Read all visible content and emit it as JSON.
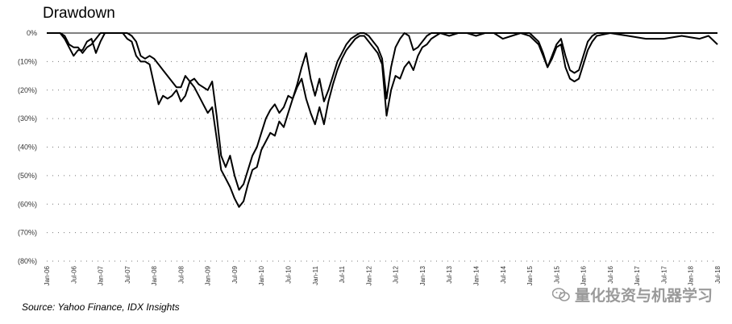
{
  "chart_data": {
    "type": "line",
    "title": "Drawdown",
    "ylabel": "",
    "xlabel": "",
    "ylim": [
      -80,
      0
    ],
    "y_ticks": [
      "0%",
      "(10%)",
      "(20%)",
      "(30%)",
      "(40%)",
      "(50%)",
      "(60%)",
      "(70%)",
      "(80%)"
    ],
    "x_ticks": [
      "Jan-06",
      "Jul-06",
      "Jan-07",
      "Jul-07",
      "Jan-08",
      "Jul-08",
      "Jan-09",
      "Jul-09",
      "Jan-10",
      "Jul-10",
      "Jan-11",
      "Jul-11",
      "Jan-12",
      "Jul-12",
      "Jan-13",
      "Jul-13",
      "Jan-14",
      "Jul-14",
      "Jan-15",
      "Jul-15",
      "Jan-16",
      "Jul-16",
      "Jan-17",
      "Jul-17",
      "Jan-18",
      "Jul-18"
    ],
    "grid": "horizontal dotted",
    "series": [
      {
        "points": [
          [
            0,
            0
          ],
          [
            3,
            0
          ],
          [
            4,
            -1
          ],
          [
            5,
            -4
          ],
          [
            6,
            -5
          ],
          [
            7,
            -5
          ],
          [
            8,
            -7
          ],
          [
            9,
            -5
          ],
          [
            10,
            -4
          ],
          [
            11,
            -2
          ],
          [
            12,
            0
          ],
          [
            14,
            0
          ],
          [
            16,
            0
          ],
          [
            18,
            0
          ],
          [
            19,
            -1
          ],
          [
            20,
            -3
          ],
          [
            21,
            -8
          ],
          [
            22,
            -9
          ],
          [
            23,
            -8
          ],
          [
            24,
            -9
          ],
          [
            25,
            -11
          ],
          [
            26,
            -13
          ],
          [
            27,
            -15
          ],
          [
            28,
            -17
          ],
          [
            29,
            -19
          ],
          [
            30,
            -19
          ],
          [
            31,
            -15
          ],
          [
            32,
            -17
          ],
          [
            33,
            -16
          ],
          [
            34,
            -18
          ],
          [
            35,
            -19
          ],
          [
            36,
            -20
          ],
          [
            37,
            -17
          ],
          [
            38,
            -29
          ],
          [
            39,
            -43
          ],
          [
            40,
            -47
          ],
          [
            41,
            -43
          ],
          [
            42,
            -50
          ],
          [
            43,
            -55
          ],
          [
            44,
            -53
          ],
          [
            45,
            -48
          ],
          [
            46,
            -43
          ],
          [
            47,
            -40
          ],
          [
            48,
            -35
          ],
          [
            49,
            -30
          ],
          [
            50,
            -27
          ],
          [
            51,
            -25
          ],
          [
            52,
            -28
          ],
          [
            53,
            -26
          ],
          [
            54,
            -22
          ],
          [
            55,
            -23
          ],
          [
            56,
            -18
          ],
          [
            57,
            -12
          ],
          [
            58,
            -7
          ],
          [
            59,
            -16
          ],
          [
            60,
            -22
          ],
          [
            61,
            -16
          ],
          [
            62,
            -24
          ],
          [
            63,
            -20
          ],
          [
            64,
            -15
          ],
          [
            65,
            -10
          ],
          [
            66,
            -7
          ],
          [
            67,
            -4
          ],
          [
            68,
            -2
          ],
          [
            69,
            -1
          ],
          [
            70,
            0
          ],
          [
            71,
            0
          ],
          [
            72,
            -1
          ],
          [
            73,
            -3
          ],
          [
            74,
            -5
          ],
          [
            75,
            -9
          ],
          [
            76,
            -23
          ],
          [
            77,
            -12
          ],
          [
            78,
            -5
          ],
          [
            79,
            -2
          ],
          [
            80,
            0
          ],
          [
            81,
            -1
          ],
          [
            82,
            -6
          ],
          [
            83,
            -5
          ],
          [
            84,
            -3
          ],
          [
            85,
            -1
          ],
          [
            86,
            0
          ],
          [
            87,
            0
          ],
          [
            88,
            0
          ],
          [
            90,
            0
          ],
          [
            92,
            0
          ],
          [
            94,
            0
          ],
          [
            96,
            0
          ],
          [
            98,
            0
          ],
          [
            100,
            0
          ],
          [
            102,
            0
          ],
          [
            104,
            0
          ],
          [
            106,
            0
          ],
          [
            108,
            0
          ],
          [
            110,
            -3
          ],
          [
            111,
            -7
          ],
          [
            112,
            -12
          ],
          [
            113,
            -8
          ],
          [
            114,
            -4
          ],
          [
            115,
            -2
          ],
          [
            116,
            -8
          ],
          [
            117,
            -13
          ],
          [
            118,
            -14
          ],
          [
            119,
            -13
          ],
          [
            120,
            -8
          ],
          [
            121,
            -3
          ],
          [
            122,
            -1
          ],
          [
            123,
            0
          ],
          [
            126,
            0
          ],
          [
            130,
            0
          ],
          [
            134,
            0
          ],
          [
            138,
            0
          ],
          [
            142,
            0
          ],
          [
            146,
            0
          ],
          [
            150,
            0
          ]
        ]
      },
      {
        "points": [
          [
            0,
            0
          ],
          [
            3,
            0
          ],
          [
            4,
            -2
          ],
          [
            5,
            -5
          ],
          [
            6,
            -8
          ],
          [
            7,
            -6
          ],
          [
            8,
            -6
          ],
          [
            9,
            -3
          ],
          [
            10,
            -2
          ],
          [
            11,
            -7
          ],
          [
            12,
            -3
          ],
          [
            13,
            0
          ],
          [
            14,
            0
          ],
          [
            16,
            0
          ],
          [
            17,
            0
          ],
          [
            18,
            -2
          ],
          [
            19,
            -3
          ],
          [
            20,
            -8
          ],
          [
            21,
            -10
          ],
          [
            22,
            -10
          ],
          [
            23,
            -11
          ],
          [
            24,
            -18
          ],
          [
            25,
            -25
          ],
          [
            26,
            -22
          ],
          [
            27,
            -23
          ],
          [
            28,
            -22
          ],
          [
            29,
            -20
          ],
          [
            30,
            -24
          ],
          [
            31,
            -22
          ],
          [
            32,
            -17
          ],
          [
            33,
            -19
          ],
          [
            34,
            -22
          ],
          [
            35,
            -25
          ],
          [
            36,
            -28
          ],
          [
            37,
            -26
          ],
          [
            38,
            -37
          ],
          [
            39,
            -48
          ],
          [
            40,
            -51
          ],
          [
            41,
            -54
          ],
          [
            42,
            -58
          ],
          [
            43,
            -61
          ],
          [
            44,
            -59
          ],
          [
            45,
            -53
          ],
          [
            46,
            -48
          ],
          [
            47,
            -47
          ],
          [
            48,
            -41
          ],
          [
            49,
            -38
          ],
          [
            50,
            -35
          ],
          [
            51,
            -36
          ],
          [
            52,
            -31
          ],
          [
            53,
            -33
          ],
          [
            54,
            -28
          ],
          [
            55,
            -23
          ],
          [
            56,
            -19
          ],
          [
            57,
            -16
          ],
          [
            58,
            -23
          ],
          [
            59,
            -28
          ],
          [
            60,
            -32
          ],
          [
            61,
            -26
          ],
          [
            62,
            -32
          ],
          [
            63,
            -24
          ],
          [
            64,
            -18
          ],
          [
            65,
            -13
          ],
          [
            66,
            -9
          ],
          [
            67,
            -6
          ],
          [
            68,
            -4
          ],
          [
            69,
            -2
          ],
          [
            70,
            -1
          ],
          [
            71,
            -1
          ],
          [
            72,
            -3
          ],
          [
            73,
            -5
          ],
          [
            74,
            -7
          ],
          [
            75,
            -11
          ],
          [
            76,
            -29
          ],
          [
            77,
            -20
          ],
          [
            78,
            -15
          ],
          [
            79,
            -16
          ],
          [
            80,
            -12
          ],
          [
            81,
            -10
          ],
          [
            82,
            -13
          ],
          [
            83,
            -8
          ],
          [
            84,
            -5
          ],
          [
            85,
            -4
          ],
          [
            86,
            -2
          ],
          [
            87,
            -1
          ],
          [
            88,
            0
          ],
          [
            90,
            -1
          ],
          [
            92,
            0
          ],
          [
            94,
            0
          ],
          [
            96,
            -1
          ],
          [
            98,
            0
          ],
          [
            100,
            0
          ],
          [
            102,
            -2
          ],
          [
            104,
            -1
          ],
          [
            106,
            0
          ],
          [
            108,
            -1
          ],
          [
            110,
            -4
          ],
          [
            111,
            -8
          ],
          [
            112,
            -12
          ],
          [
            113,
            -9
          ],
          [
            114,
            -5
          ],
          [
            115,
            -4
          ],
          [
            116,
            -12
          ],
          [
            117,
            -16
          ],
          [
            118,
            -17
          ],
          [
            119,
            -16
          ],
          [
            120,
            -11
          ],
          [
            121,
            -6
          ],
          [
            122,
            -3
          ],
          [
            123,
            -1
          ],
          [
            126,
            0
          ],
          [
            130,
            -1
          ],
          [
            134,
            -2
          ],
          [
            138,
            -2
          ],
          [
            142,
            -1
          ],
          [
            146,
            -2
          ],
          [
            148,
            -1
          ],
          [
            150,
            -4
          ]
        ]
      }
    ]
  },
  "footer": {
    "source": "Source:  Yahoo Finance, IDX Insights",
    "watermark": "量化投资与机器学习",
    "watermark_icon": "chat-bubble-icon"
  }
}
